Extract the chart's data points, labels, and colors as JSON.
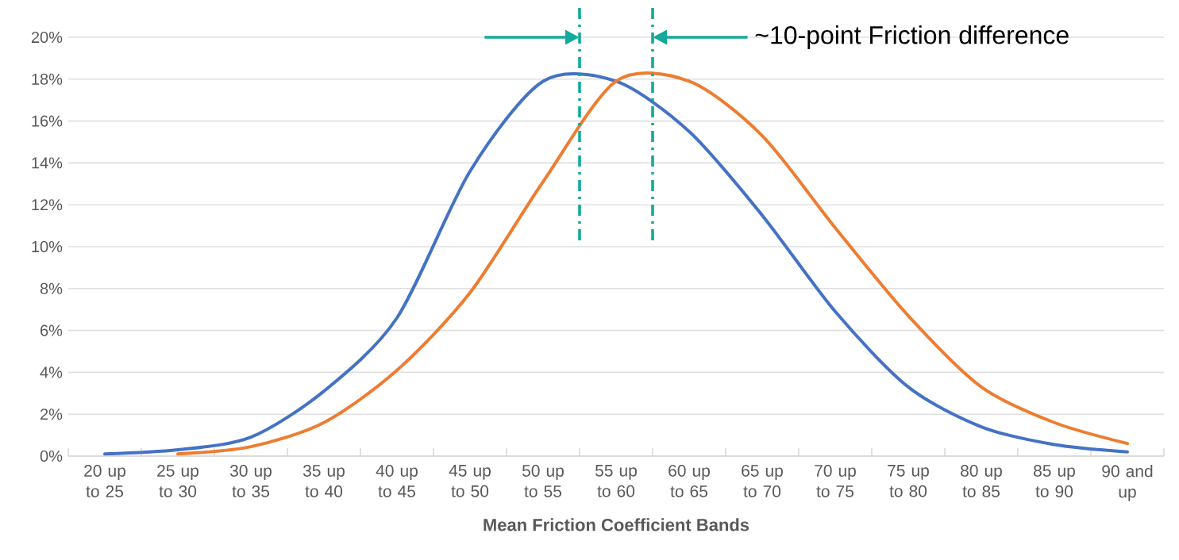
{
  "chart_data": {
    "type": "line",
    "xlabel": "Mean Friction Coefficient Bands",
    "annotations": [
      "~10-point Friction difference"
    ],
    "categories": [
      "20 up to 25",
      "25 up to 30",
      "30 up to 35",
      "35 up to 40",
      "40 up to 45",
      "45 up to 50",
      "50 up to 55",
      "55 up to 60",
      "60 up to 65",
      "65 up to 70",
      "70 up to 75",
      "75 up to 80",
      "80 up to 85",
      "85 up to 90",
      "90 and up"
    ],
    "series": [
      {
        "color": "#4472c4",
        "values": [
          0.1,
          0.3,
          0.9,
          3.1,
          6.6,
          13.6,
          17.9,
          17.9,
          15.5,
          11.5,
          6.9,
          3.3,
          1.4,
          0.55,
          0.2
        ]
      },
      {
        "color": "#ed7d31",
        "values": [
          null,
          0.1,
          0.45,
          1.6,
          4.1,
          7.8,
          13.1,
          17.9,
          17.9,
          15.3,
          10.9,
          6.7,
          3.3,
          1.6,
          0.6
        ]
      }
    ],
    "ylim": [
      0,
      20
    ],
    "yticks": [
      {
        "value": 0,
        "label": "0%"
      },
      {
        "value": 2,
        "label": "2%"
      },
      {
        "value": 4,
        "label": "4%"
      },
      {
        "value": 6,
        "label": "6%"
      },
      {
        "value": 8,
        "label": "8%"
      },
      {
        "value": 10,
        "label": "10%"
      },
      {
        "value": 12,
        "label": "12%"
      },
      {
        "value": 14,
        "label": "14%"
      },
      {
        "value": 16,
        "label": "16%"
      },
      {
        "value": 18,
        "label": "18%"
      },
      {
        "value": 20,
        "label": "20%"
      }
    ],
    "grid": "y"
  }
}
